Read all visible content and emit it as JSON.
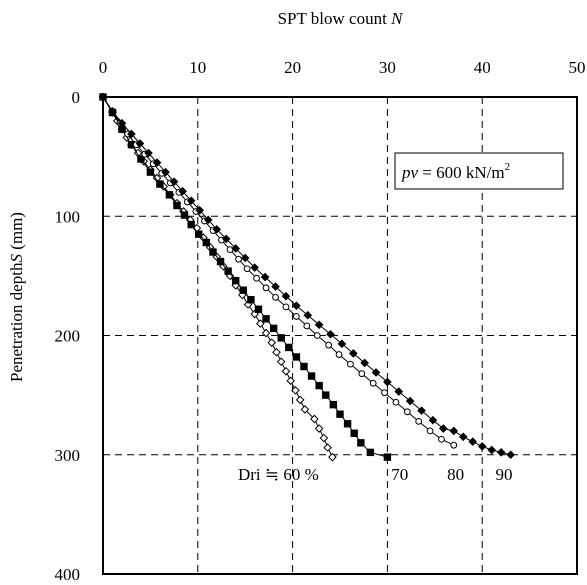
{
  "chart_data": {
    "type": "line",
    "title": "",
    "xlabel": "SPT blow count",
    "xlabel_symbol": "N",
    "ylabel": "Penetration depth",
    "ylabel_symbol": "S",
    "ylabel_unit": "(mm)",
    "xlim": [
      0,
      50
    ],
    "ylim": [
      0,
      400
    ],
    "x_ticks": [
      0,
      10,
      20,
      30,
      40,
      50
    ],
    "y_ticks": [
      0,
      100,
      200,
      300,
      400
    ],
    "x_axis_position": "top",
    "y_inverted": true,
    "grid": true,
    "annotation_box": {
      "symbol": "pv",
      "text": " = 600 kN/m",
      "superscript": "2"
    },
    "series_labels": [
      {
        "text": "Dri ≒ 60 %",
        "x": 18.5,
        "y": 321
      },
      {
        "text": "70",
        "x": 31.3,
        "y": 321
      },
      {
        "text": "80",
        "x": 37.2,
        "y": 321
      },
      {
        "text": "90",
        "x": 42.3,
        "y": 321
      }
    ],
    "series": [
      {
        "label": "60",
        "marker": "open-diamond",
        "points": [
          [
            0,
            0
          ],
          [
            1,
            13
          ],
          [
            1.5,
            20
          ],
          [
            2,
            27
          ],
          [
            2.5,
            34
          ],
          [
            3,
            40
          ],
          [
            3.7,
            47
          ],
          [
            4.3,
            54
          ],
          [
            5,
            61
          ],
          [
            5.7,
            68
          ],
          [
            6.4,
            75
          ],
          [
            7.1,
            82
          ],
          [
            7.8,
            89
          ],
          [
            8.5,
            96
          ],
          [
            9.2,
            103
          ],
          [
            9.9,
            110
          ],
          [
            10.6,
            118
          ],
          [
            11.3,
            126
          ],
          [
            12,
            134
          ],
          [
            12.7,
            142
          ],
          [
            13.4,
            150
          ],
          [
            14,
            158
          ],
          [
            14.7,
            166
          ],
          [
            15.3,
            174
          ],
          [
            16,
            182
          ],
          [
            16.6,
            190
          ],
          [
            17.2,
            198
          ],
          [
            17.8,
            206
          ],
          [
            18.3,
            214
          ],
          [
            18.8,
            222
          ],
          [
            19.3,
            230
          ],
          [
            19.8,
            238
          ],
          [
            20.3,
            246
          ],
          [
            20.8,
            254
          ],
          [
            21.3,
            262
          ],
          [
            22.3,
            270
          ],
          [
            22.8,
            278
          ],
          [
            23.3,
            286
          ],
          [
            23.7,
            294
          ],
          [
            24.2,
            302
          ]
        ]
      },
      {
        "label": "70",
        "marker": "filled-square",
        "points": [
          [
            0,
            0
          ],
          [
            1,
            13
          ],
          [
            2,
            27
          ],
          [
            3,
            40
          ],
          [
            4,
            52
          ],
          [
            5,
            63
          ],
          [
            6,
            73
          ],
          [
            7,
            82
          ],
          [
            7.8,
            91
          ],
          [
            8.6,
            99
          ],
          [
            9.3,
            107
          ],
          [
            10.1,
            115
          ],
          [
            10.9,
            122
          ],
          [
            11.6,
            130
          ],
          [
            12.4,
            138
          ],
          [
            13.2,
            146
          ],
          [
            14,
            154
          ],
          [
            14.8,
            162
          ],
          [
            15.6,
            170
          ],
          [
            16.4,
            178
          ],
          [
            17.2,
            186
          ],
          [
            18,
            194
          ],
          [
            18.8,
            202
          ],
          [
            19.6,
            210
          ],
          [
            20.4,
            218
          ],
          [
            21.2,
            226
          ],
          [
            22,
            234
          ],
          [
            22.8,
            242
          ],
          [
            23.5,
            250
          ],
          [
            24.3,
            258
          ],
          [
            25,
            266
          ],
          [
            25.8,
            274
          ],
          [
            26.5,
            282
          ],
          [
            27.2,
            290
          ],
          [
            28.2,
            298
          ],
          [
            30,
            302
          ]
        ]
      },
      {
        "label": "80",
        "marker": "open-circle",
        "points": [
          [
            0,
            0
          ],
          [
            1,
            12
          ],
          [
            1.8,
            22
          ],
          [
            2.6,
            31
          ],
          [
            3.5,
            40
          ],
          [
            4.4,
            48
          ],
          [
            5.3,
            56
          ],
          [
            6.2,
            64
          ],
          [
            7.1,
            72
          ],
          [
            8,
            80
          ],
          [
            8.9,
            88
          ],
          [
            9.8,
            96
          ],
          [
            10.7,
            104
          ],
          [
            11.6,
            112
          ],
          [
            12.5,
            120
          ],
          [
            13.4,
            128
          ],
          [
            14.3,
            136
          ],
          [
            15.2,
            144
          ],
          [
            16.2,
            152
          ],
          [
            17.2,
            160
          ],
          [
            18.2,
            168
          ],
          [
            19.3,
            176
          ],
          [
            20.4,
            184
          ],
          [
            21.5,
            192
          ],
          [
            22.6,
            200
          ],
          [
            23.8,
            208
          ],
          [
            24.9,
            216
          ],
          [
            26.1,
            224
          ],
          [
            27.3,
            232
          ],
          [
            28.5,
            240
          ],
          [
            29.7,
            248
          ],
          [
            30.9,
            256
          ],
          [
            32.1,
            264
          ],
          [
            33.3,
            272
          ],
          [
            34.5,
            280
          ],
          [
            35.7,
            287
          ],
          [
            37,
            292
          ]
        ]
      },
      {
        "label": "90",
        "marker": "filled-diamond",
        "points": [
          [
            0,
            0
          ],
          [
            1,
            12
          ],
          [
            2,
            22
          ],
          [
            3,
            31
          ],
          [
            3.9,
            39
          ],
          [
            4.8,
            47
          ],
          [
            5.7,
            55
          ],
          [
            6.6,
            63
          ],
          [
            7.5,
            71
          ],
          [
            8.4,
            79
          ],
          [
            9.3,
            87
          ],
          [
            10.2,
            95
          ],
          [
            11.1,
            103
          ],
          [
            12,
            111
          ],
          [
            13,
            119
          ],
          [
            14,
            127
          ],
          [
            15,
            135
          ],
          [
            16,
            143
          ],
          [
            17.1,
            151
          ],
          [
            18.2,
            159
          ],
          [
            19.3,
            167
          ],
          [
            20.4,
            175
          ],
          [
            21.6,
            183
          ],
          [
            22.8,
            191
          ],
          [
            24,
            199
          ],
          [
            25.2,
            207
          ],
          [
            26.4,
            215
          ],
          [
            27.6,
            223
          ],
          [
            28.8,
            231
          ],
          [
            30,
            239
          ],
          [
            31.2,
            247
          ],
          [
            32.4,
            255
          ],
          [
            33.6,
            263
          ],
          [
            34.8,
            271
          ],
          [
            35.9,
            278
          ],
          [
            37,
            280
          ],
          [
            38,
            285
          ],
          [
            39,
            289
          ],
          [
            40,
            293
          ],
          [
            41,
            296
          ],
          [
            42,
            298
          ],
          [
            43,
            300
          ]
        ]
      }
    ]
  }
}
